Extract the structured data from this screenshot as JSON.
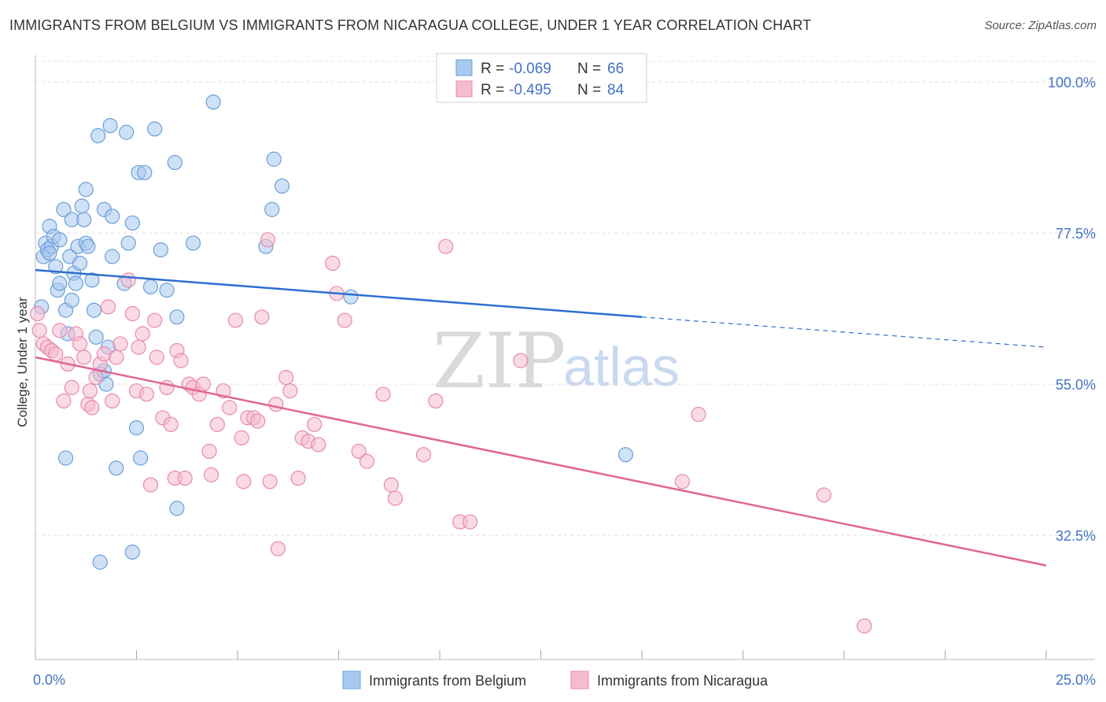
{
  "title": "IMMIGRANTS FROM BELGIUM VS IMMIGRANTS FROM NICARAGUA COLLEGE, UNDER 1 YEAR CORRELATION CHART",
  "source": "Source: ZipAtlas.com",
  "watermark": {
    "zip": "ZIP",
    "atlas": "atlas"
  },
  "colors": {
    "belgium_fill": "#a8c8f0",
    "belgium_stroke": "#6a9fd8",
    "belgium_line": "#2e6fcf",
    "nicaragua_fill": "#f5bcd0",
    "nicaragua_stroke": "#e88aab",
    "nicaragua_line": "#e06694",
    "grid": "#e0e0e0",
    "tick_label": "#4472c4"
  },
  "legend_top": {
    "rows": [
      {
        "r_label": "R = ",
        "r_value": "-0.069",
        "n_label": "N = ",
        "n_value": "66"
      },
      {
        "r_label": "R = ",
        "r_value": "-0.495",
        "n_label": "N = ",
        "n_value": "84"
      }
    ]
  },
  "chart_data": {
    "type": "scatter",
    "title": "IMMIGRANTS FROM BELGIUM VS IMMIGRANTS FROM NICARAGUA COLLEGE, UNDER 1 YEAR CORRELATION CHART",
    "xlabel": "",
    "ylabel": "College, Under 1 year",
    "xlim": [
      0,
      25
    ],
    "ylim": [
      14,
      104
    ],
    "x_tick_labels": [
      "0.0%",
      "25.0%"
    ],
    "y_ticks": [
      32.5,
      55.0,
      77.5,
      100.0
    ],
    "y_tick_labels": [
      "32.5%",
      "55.0%",
      "77.5%",
      "100.0%"
    ],
    "grid": true,
    "legend_placement": "bottom-center",
    "series": [
      {
        "name": "Immigrants from Belgium",
        "points": [
          [
            0.15,
            66.5
          ],
          [
            0.2,
            74.0
          ],
          [
            0.25,
            76.0
          ],
          [
            0.3,
            75.0
          ],
          [
            0.35,
            78.5
          ],
          [
            0.4,
            75.5
          ],
          [
            0.35,
            74.5
          ],
          [
            0.45,
            77.0
          ],
          [
            0.5,
            72.5
          ],
          [
            0.55,
            69.0
          ],
          [
            0.6,
            76.5
          ],
          [
            0.6,
            70.0
          ],
          [
            0.7,
            81.0
          ],
          [
            0.75,
            66.0
          ],
          [
            0.8,
            62.5
          ],
          [
            0.85,
            74.0
          ],
          [
            0.9,
            79.5
          ],
          [
            0.9,
            67.5
          ],
          [
            0.95,
            71.5
          ],
          [
            1.0,
            70.0
          ],
          [
            1.05,
            75.5
          ],
          [
            1.1,
            73.0
          ],
          [
            1.15,
            81.5
          ],
          [
            1.2,
            79.5
          ],
          [
            1.25,
            76.0
          ],
          [
            1.25,
            84.0
          ],
          [
            1.3,
            75.5
          ],
          [
            1.4,
            70.5
          ],
          [
            1.45,
            66.0
          ],
          [
            1.5,
            62.0
          ],
          [
            1.55,
            92.0
          ],
          [
            1.6,
            56.5
          ],
          [
            1.7,
            81.0
          ],
          [
            1.75,
            55.0
          ],
          [
            1.8,
            60.5
          ],
          [
            1.85,
            93.5
          ],
          [
            1.9,
            74.0
          ],
          [
            1.9,
            80.0
          ],
          [
            2.2,
            70.0
          ],
          [
            2.25,
            92.5
          ],
          [
            2.3,
            76.0
          ],
          [
            2.4,
            79.0
          ],
          [
            2.55,
            86.5
          ],
          [
            2.6,
            44.0
          ],
          [
            2.7,
            86.5
          ],
          [
            2.85,
            69.5
          ],
          [
            2.95,
            93.0
          ],
          [
            3.1,
            75.0
          ],
          [
            3.25,
            69.0
          ],
          [
            3.45,
            88.0
          ],
          [
            3.5,
            65.0
          ],
          [
            3.5,
            36.5
          ],
          [
            3.9,
            76.0
          ],
          [
            4.4,
            97.0
          ],
          [
            5.7,
            75.5
          ],
          [
            5.9,
            88.5
          ],
          [
            6.1,
            84.5
          ],
          [
            5.85,
            81.0
          ],
          [
            7.8,
            68.0
          ],
          [
            14.6,
            44.5
          ],
          [
            0.75,
            44.0
          ],
          [
            1.6,
            28.5
          ],
          [
            2.4,
            30.0
          ],
          [
            2.0,
            42.5
          ],
          [
            2.5,
            48.5
          ],
          [
            1.7,
            57.0
          ]
        ]
      },
      {
        "name": "Immigrants from Nicaragua",
        "points": [
          [
            0.1,
            63.0
          ],
          [
            0.2,
            61.0
          ],
          [
            0.3,
            60.5
          ],
          [
            0.4,
            60.0
          ],
          [
            0.5,
            59.5
          ],
          [
            0.6,
            63.0
          ],
          [
            0.7,
            52.5
          ],
          [
            0.8,
            58.0
          ],
          [
            0.9,
            54.5
          ],
          [
            1.0,
            62.5
          ],
          [
            1.1,
            61.0
          ],
          [
            1.2,
            59.0
          ],
          [
            1.3,
            52.0
          ],
          [
            1.35,
            54.0
          ],
          [
            1.4,
            51.5
          ],
          [
            1.5,
            56.0
          ],
          [
            1.6,
            58.0
          ],
          [
            1.7,
            59.5
          ],
          [
            1.8,
            66.5
          ],
          [
            1.9,
            52.5
          ],
          [
            2.0,
            59.0
          ],
          [
            2.1,
            61.0
          ],
          [
            2.3,
            70.5
          ],
          [
            2.4,
            65.5
          ],
          [
            2.5,
            54.0
          ],
          [
            2.55,
            60.5
          ],
          [
            2.65,
            62.5
          ],
          [
            2.75,
            53.5
          ],
          [
            2.85,
            40.0
          ],
          [
            2.95,
            64.5
          ],
          [
            3.0,
            59.0
          ],
          [
            3.15,
            50.0
          ],
          [
            3.25,
            54.5
          ],
          [
            3.35,
            49.0
          ],
          [
            3.45,
            41.0
          ],
          [
            3.5,
            60.0
          ],
          [
            3.6,
            58.5
          ],
          [
            3.7,
            41.0
          ],
          [
            3.8,
            55.0
          ],
          [
            3.9,
            54.5
          ],
          [
            4.05,
            53.5
          ],
          [
            4.15,
            55.0
          ],
          [
            4.3,
            45.0
          ],
          [
            4.35,
            41.5
          ],
          [
            4.5,
            49.0
          ],
          [
            4.65,
            54.0
          ],
          [
            4.8,
            51.5
          ],
          [
            4.95,
            64.5
          ],
          [
            5.1,
            47.0
          ],
          [
            5.15,
            40.5
          ],
          [
            5.25,
            50.0
          ],
          [
            5.4,
            50.0
          ],
          [
            5.5,
            49.5
          ],
          [
            5.6,
            65.0
          ],
          [
            5.75,
            76.5
          ],
          [
            5.8,
            40.5
          ],
          [
            5.95,
            52.0
          ],
          [
            6.0,
            30.5
          ],
          [
            6.2,
            56.0
          ],
          [
            6.3,
            54.0
          ],
          [
            6.5,
            41.0
          ],
          [
            6.6,
            47.0
          ],
          [
            6.75,
            46.5
          ],
          [
            6.9,
            49.0
          ],
          [
            7.0,
            46.0
          ],
          [
            7.35,
            73.0
          ],
          [
            7.45,
            68.5
          ],
          [
            7.65,
            64.5
          ],
          [
            8.0,
            45.0
          ],
          [
            8.2,
            43.5
          ],
          [
            8.6,
            53.5
          ],
          [
            8.8,
            40.0
          ],
          [
            8.9,
            38.0
          ],
          [
            9.6,
            44.5
          ],
          [
            9.9,
            52.5
          ],
          [
            10.15,
            75.5
          ],
          [
            10.5,
            34.5
          ],
          [
            10.75,
            34.5
          ],
          [
            12.0,
            58.5
          ],
          [
            16.0,
            40.5
          ],
          [
            16.4,
            50.5
          ],
          [
            19.5,
            38.5
          ],
          [
            20.5,
            19.0
          ],
          [
            0.05,
            65.5
          ]
        ]
      }
    ],
    "trend_lines": [
      {
        "series": "Immigrants from Belgium",
        "x": [
          0.0,
          15.0
        ],
        "y": [
          72.0,
          65.0
        ],
        "dashed_to": [
          25.0,
          60.5
        ]
      },
      {
        "series": "Immigrants from Nicaragua",
        "x": [
          0.0,
          25.0
        ],
        "y": [
          59.0,
          28.0
        ]
      }
    ]
  }
}
